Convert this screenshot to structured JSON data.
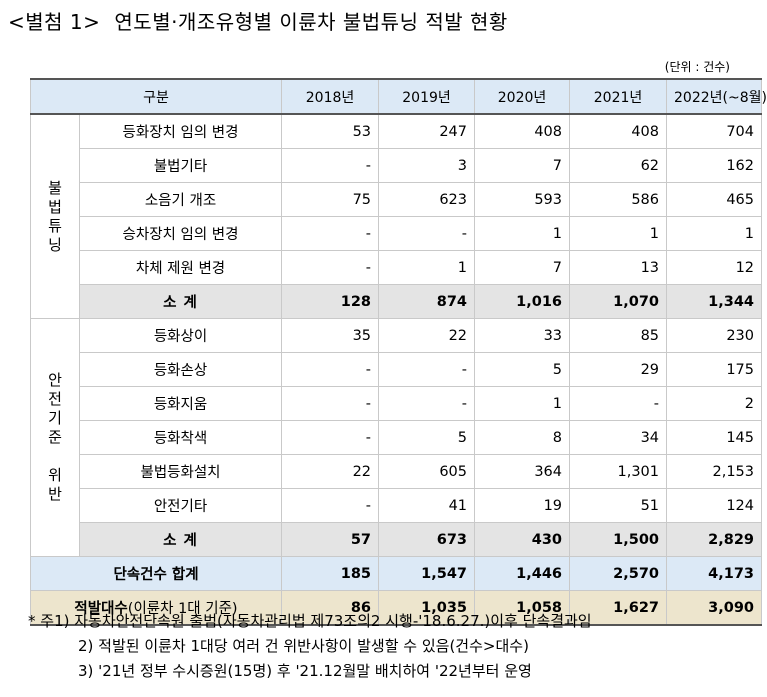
{
  "title": {
    "tag": "<별첨 1>",
    "text": "연도별·개조유형별 이륜차 불법튜닝 적발 현황"
  },
  "unit": "(단위 : 건수)",
  "table": {
    "header": [
      "구분",
      "2018년",
      "2019년",
      "2020년",
      "2021년",
      "2022년(~8월)"
    ],
    "groups": [
      {
        "label_lines": [
          "불",
          "법",
          "튜",
          "닝"
        ],
        "rows": [
          {
            "item": "등화장치 임의 변경",
            "values": [
              "53",
              "247",
              "408",
              "408",
              "704"
            ]
          },
          {
            "item": "불법기타",
            "values": [
              "-",
              "3",
              "7",
              "62",
              "162"
            ]
          },
          {
            "item": "소음기 개조",
            "values": [
              "75",
              "623",
              "593",
              "586",
              "465"
            ]
          },
          {
            "item": "승차장치 임의 변경",
            "values": [
              "-",
              "-",
              "1",
              "1",
              "1"
            ]
          },
          {
            "item": "차체 제원 변경",
            "values": [
              "-",
              "1",
              "7",
              "13",
              "12"
            ]
          }
        ],
        "subtotal": {
          "label": "소 계",
          "values": [
            "128",
            "874",
            "1,016",
            "1,070",
            "1,344"
          ]
        }
      },
      {
        "label_lines": [
          "안",
          "전",
          "기",
          "준",
          "",
          "위",
          "반"
        ],
        "rows": [
          {
            "item": "등화상이",
            "values": [
              "35",
              "22",
              "33",
              "85",
              "230"
            ]
          },
          {
            "item": "등화손상",
            "values": [
              "-",
              "-",
              "5",
              "29",
              "175"
            ]
          },
          {
            "item": "등화지움",
            "values": [
              "-",
              "-",
              "1",
              "-",
              "2"
            ]
          },
          {
            "item": "등화착색",
            "values": [
              "-",
              "5",
              "8",
              "34",
              "145"
            ]
          },
          {
            "item": "불법등화설치",
            "values": [
              "22",
              "605",
              "364",
              "1,301",
              "2,153"
            ]
          },
          {
            "item": "안전기타",
            "values": [
              "-",
              "41",
              "19",
              "51",
              "124"
            ]
          }
        ],
        "subtotal": {
          "label": "소 계",
          "values": [
            "57",
            "673",
            "430",
            "1,500",
            "2,829"
          ]
        }
      }
    ],
    "total": {
      "label": "단속건수 합계",
      "values": [
        "185",
        "1,547",
        "1,446",
        "2,570",
        "4,173"
      ]
    },
    "detected": {
      "label_main": "적발대수",
      "label_paren": "(이륜차 1대 기준)",
      "values": [
        "86",
        "1,035",
        "1,058",
        "1,627",
        "3,090"
      ]
    }
  },
  "notes": [
    "* 주1) 자동차안전단속원 출범(자동차관리법 제73조의2 시행-'18.6.27.)이후 단속결과임",
    "2) 적발된 이륜차 1대당 여러 건 위반사항이 발생할 수 있음(건수>대수)",
    "3) '21년 정부 수시증원(15명) 후 '21.12월말 배치하여 '22년부터 운영"
  ],
  "colors": {
    "header_bg": "#dce9f6",
    "subtotal_bg": "#e4e4e4",
    "total_bg": "#dce9f6",
    "detected_bg": "#ede5cd"
  }
}
